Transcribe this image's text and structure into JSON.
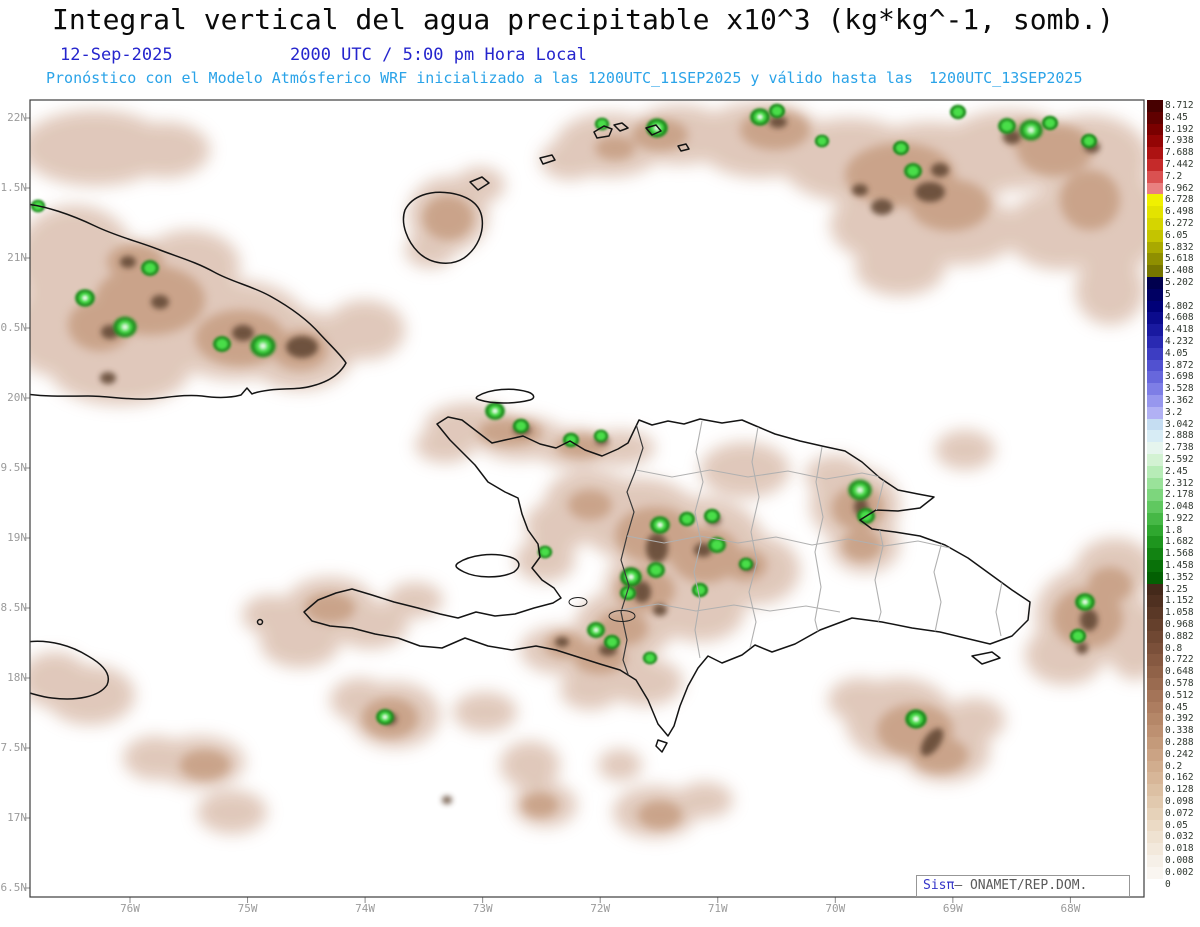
{
  "header": {
    "title": "Integral vertical del agua precipitable x10^3 (kg*kg^-1, somb.)",
    "date": "12-Sep-2025",
    "time": "2000 UTC / 5:00 pm Hora Local",
    "forecast_prefix": "Pronóstico con el Modelo Atmósferico WRF inicializado a las 1200UTC_11SEP2025 y válido hasta las",
    "forecast_valid": "1200UTC_13SEP2025"
  },
  "map": {
    "lat_labels": [
      "22N",
      "1.5N",
      "21N",
      "0.5N",
      "20N",
      "9.5N",
      "19N",
      "8.5N",
      "18N",
      "7.5N",
      "17N",
      "6.5N"
    ],
    "lon_labels": [
      "76W",
      "75W",
      "74W",
      "73W",
      "72W",
      "71W",
      "70W",
      "69W",
      "68W"
    ]
  },
  "attribution": {
    "brand": "Sisπ",
    "rest": "— ONAMET/REP.DOM."
  },
  "chart_data": {
    "type": "heatmap",
    "title": "Integral vertical del agua precipitable x10^3 (kg*kg^-1, somb.)",
    "valid_date": "12-Sep-2025",
    "valid_time": "2000 UTC / 5:00 pm Hora Local",
    "model_note": "Pronóstico con el Modelo Atmósferico WRF inicializado a las 1200UTC_11SEP2025 y válido hasta las 1200UTC_13SEP2025",
    "region": "Eastern Cuba, Hispaniola (Haiti / Dominican Republic), Jamaica tip, Turks & Caicos and surrounding waters",
    "x_axis": {
      "label": "Longitude",
      "ticks": [
        "76W",
        "75W",
        "74W",
        "73W",
        "72W",
        "71W",
        "70W",
        "69W",
        "68W"
      ],
      "range_deg_w": [
        76.9,
        67.4
      ]
    },
    "y_axis": {
      "label": "Latitude",
      "ticks": [
        "22N",
        "1.5N",
        "21N",
        "0.5N",
        "20N",
        "9.5N",
        "19N",
        "8.5N",
        "18N",
        "7.5N",
        "17N",
        "6.5N"
      ],
      "range_deg_n": [
        16.45,
        22.13
      ]
    },
    "field_summary": "Shaded field mostly 0 to 0.5 (tan) with dark-brown cells near 0.8-1.25 and isolated green maxima near 1.5-2.7",
    "peak_value_approx": "1.5 - 2.7",
    "local_maxima_approx": [
      {
        "lon": "76.4W",
        "lat": "20.7N"
      },
      {
        "lon": "76.0W",
        "lat": "20.5N"
      },
      {
        "lon": "74.9W",
        "lat": "20.4N"
      },
      {
        "lon": "71.5W",
        "lat": "21.9N"
      },
      {
        "lon": "70.6W",
        "lat": "22.0N"
      },
      {
        "lon": "69.3W",
        "lat": "21.6N"
      },
      {
        "lon": "68.3W",
        "lat": "21.9N"
      },
      {
        "lon": "72.9W",
        "lat": "19.9N"
      },
      {
        "lon": "71.5W",
        "lat": "19.1N"
      },
      {
        "lon": "71.7W",
        "lat": "18.7N"
      },
      {
        "lon": "69.8W",
        "lat": "19.3N"
      },
      {
        "lon": "67.9W",
        "lat": "18.5N"
      },
      {
        "lon": "72.0W",
        "lat": "18.3N"
      },
      {
        "lon": "73.8W",
        "lat": "17.7N"
      },
      {
        "lon": "69.3W",
        "lat": "17.7N"
      }
    ],
    "colorbar": {
      "levels": [
        {
          "value": "8.712",
          "color": "#470000"
        },
        {
          "value": "8.45",
          "color": "#600000"
        },
        {
          "value": "8.192",
          "color": "#7a0000"
        },
        {
          "value": "7.938",
          "color": "#940505"
        },
        {
          "value": "7.688",
          "color": "#ad1212"
        },
        {
          "value": "7.442",
          "color": "#c52a2a"
        },
        {
          "value": "7.2",
          "color": "#da5151"
        },
        {
          "value": "6.962",
          "color": "#e98080"
        },
        {
          "value": "6.728",
          "color": "#f0f000"
        },
        {
          "value": "6.498",
          "color": "#e3e300"
        },
        {
          "value": "6.272",
          "color": "#d5d500"
        },
        {
          "value": "6.05",
          "color": "#c4c400"
        },
        {
          "value": "5.832",
          "color": "#a9a900"
        },
        {
          "value": "5.618",
          "color": "#8f8f00"
        },
        {
          "value": "5.408",
          "color": "#767600"
        },
        {
          "value": "5.202",
          "color": "#00004e"
        },
        {
          "value": "5",
          "color": "#000063"
        },
        {
          "value": "4.802",
          "color": "#000078"
        },
        {
          "value": "4.608",
          "color": "#0b0b8d"
        },
        {
          "value": "4.418",
          "color": "#1919a0"
        },
        {
          "value": "4.232",
          "color": "#2a2ab2"
        },
        {
          "value": "4.05",
          "color": "#3d3dc2"
        },
        {
          "value": "3.872",
          "color": "#5151d0"
        },
        {
          "value": "3.698",
          "color": "#6767dc"
        },
        {
          "value": "3.528",
          "color": "#7e7ee6"
        },
        {
          "value": "3.362",
          "color": "#9797ee"
        },
        {
          "value": "3.2",
          "color": "#b1b1f4"
        },
        {
          "value": "3.042",
          "color": "#c5ddf2"
        },
        {
          "value": "2.888",
          "color": "#d7ecf5"
        },
        {
          "value": "2.738",
          "color": "#e6f5ee"
        },
        {
          "value": "2.592",
          "color": "#d3f2d3"
        },
        {
          "value": "2.45",
          "color": "#b7ecb7"
        },
        {
          "value": "2.312",
          "color": "#9ae29a"
        },
        {
          "value": "2.178",
          "color": "#7dd67d"
        },
        {
          "value": "2.048",
          "color": "#60c860"
        },
        {
          "value": "1.922",
          "color": "#46b846"
        },
        {
          "value": "1.8",
          "color": "#2fa72f"
        },
        {
          "value": "1.682",
          "color": "#1e951e"
        },
        {
          "value": "1.568",
          "color": "#128312"
        },
        {
          "value": "1.458",
          "color": "#097109"
        },
        {
          "value": "1.352",
          "color": "#036003"
        },
        {
          "value": "1.25",
          "color": "#44291a"
        },
        {
          "value": "1.152",
          "color": "#4f3020"
        },
        {
          "value": "1.058",
          "color": "#5a3826"
        },
        {
          "value": "0.968",
          "color": "#65402c"
        },
        {
          "value": "0.882",
          "color": "#704833"
        },
        {
          "value": "0.8",
          "color": "#7b503a"
        },
        {
          "value": "0.722",
          "color": "#865941"
        },
        {
          "value": "0.648",
          "color": "#906248"
        },
        {
          "value": "0.578",
          "color": "#9a6b50"
        },
        {
          "value": "0.512",
          "color": "#a47458"
        },
        {
          "value": "0.45",
          "color": "#ad7d60"
        },
        {
          "value": "0.392",
          "color": "#b58768"
        },
        {
          "value": "0.338",
          "color": "#bd9071"
        },
        {
          "value": "0.288",
          "color": "#c49a7a"
        },
        {
          "value": "0.242",
          "color": "#cba384"
        },
        {
          "value": "0.2",
          "color": "#d1ad8e"
        },
        {
          "value": "0.162",
          "color": "#d7b698"
        },
        {
          "value": "0.128",
          "color": "#dcc0a3"
        },
        {
          "value": "0.098",
          "color": "#e1c9ae"
        },
        {
          "value": "0.072",
          "color": "#e6d2b9"
        },
        {
          "value": "0.05",
          "color": "#ebdac5"
        },
        {
          "value": "0.032",
          "color": "#efe2d1"
        },
        {
          "value": "0.018",
          "color": "#f3e9dc"
        },
        {
          "value": "0.008",
          "color": "#f6f0e8"
        },
        {
          "value": "0.002",
          "color": "#faf6f1"
        },
        {
          "value": "0",
          "color": "#ffffff"
        }
      ]
    },
    "attribution": "Sisπ — ONAMET/REP.DOM."
  }
}
